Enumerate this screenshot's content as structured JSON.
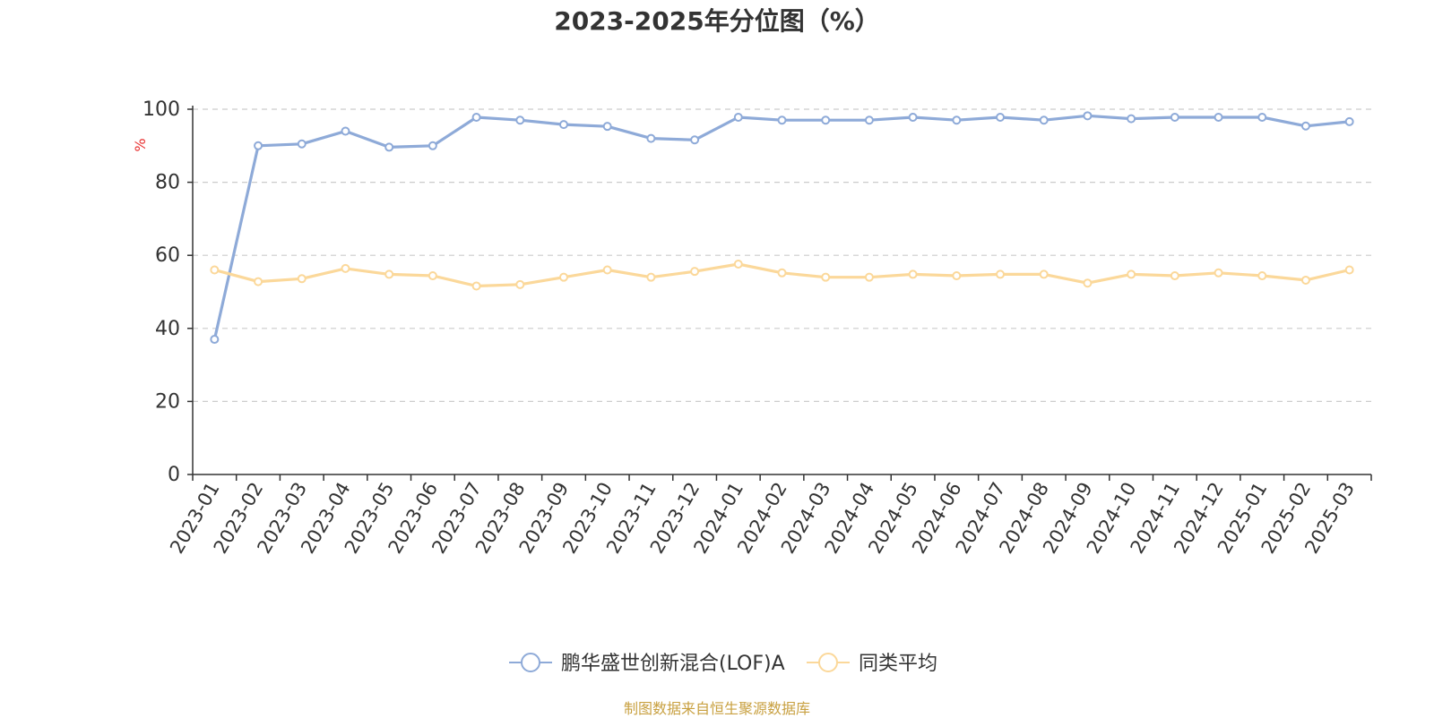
{
  "chart_data": {
    "type": "line",
    "title": "2023-2025年分位图（%）",
    "ylabel": "%",
    "ylim": [
      0,
      100
    ],
    "yticks": [
      0,
      20,
      40,
      60,
      80,
      100
    ],
    "grid": true,
    "legend_position": "bottom-center",
    "categories": [
      "2023-01",
      "2023-02",
      "2023-03",
      "2023-04",
      "2023-05",
      "2023-06",
      "2023-07",
      "2023-08",
      "2023-09",
      "2023-10",
      "2023-11",
      "2023-12",
      "2024-01",
      "2024-02",
      "2024-03",
      "2024-04",
      "2024-05",
      "2024-06",
      "2024-07",
      "2024-08",
      "2024-09",
      "2024-10",
      "2024-11",
      "2024-12",
      "2025-01",
      "2025-02",
      "2025-03"
    ],
    "series": [
      {
        "name": "鹏华盛世创新混合(LOF)A",
        "color": "#8eaad8",
        "values": [
          37.0,
          90.0,
          90.5,
          94.0,
          89.6,
          90.0,
          97.8,
          97.0,
          95.8,
          95.3,
          92.0,
          91.6,
          97.8,
          97.0,
          97.0,
          97.0,
          97.8,
          97.0,
          97.8,
          97.0,
          98.2,
          97.4,
          97.8,
          97.8,
          97.8,
          95.4,
          96.6
        ]
      },
      {
        "name": "同类平均",
        "color": "#fbd89a",
        "values": [
          56.0,
          52.8,
          53.6,
          56.4,
          54.8,
          54.4,
          51.6,
          52.0,
          54.0,
          56.0,
          54.0,
          55.6,
          57.6,
          55.2,
          54.0,
          54.0,
          54.8,
          54.4,
          54.8,
          54.8,
          52.4,
          54.8,
          54.4,
          55.2,
          54.4,
          53.2,
          56.0
        ]
      }
    ],
    "source": "制图数据来自恒生聚源数据库"
  }
}
